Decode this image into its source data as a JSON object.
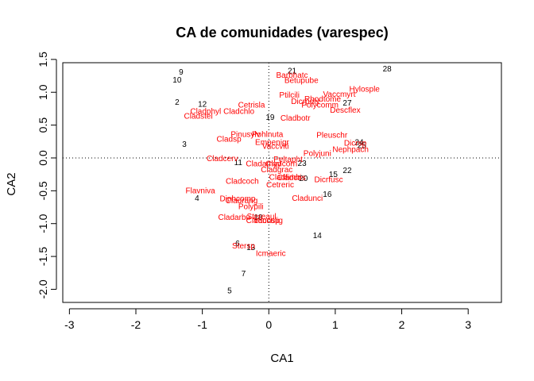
{
  "chart_data": {
    "type": "scatter",
    "title": "CA de comunidades (varespec)",
    "xlabel": "CA1",
    "ylabel": "CA2",
    "xlim": [
      -3.1,
      3.5
    ],
    "ylim": [
      -2.2,
      1.45
    ],
    "xticks": [
      -3,
      -2,
      -1,
      0,
      1,
      2,
      3
    ],
    "yticks": [
      -2.0,
      -1.5,
      -1.0,
      -0.5,
      0.0,
      0.5,
      1.0,
      1.5
    ],
    "ytick_labels": [
      "-2.0",
      "-1.5",
      "-1.0",
      "-0.5",
      "0.0",
      "0.5",
      "1.0",
      "1.5"
    ],
    "reference_lines": {
      "x": 0,
      "y": 0,
      "style": "dotted"
    },
    "colors": {
      "sites": "#000000",
      "species": "#ff0000"
    },
    "sites": [
      {
        "label": "9",
        "x": -1.32,
        "y": 1.3
      },
      {
        "label": "10",
        "x": -1.38,
        "y": 1.18
      },
      {
        "label": "21",
        "x": 0.35,
        "y": 1.32
      },
      {
        "label": "28",
        "x": 1.78,
        "y": 1.35
      },
      {
        "label": "2",
        "x": -1.38,
        "y": 0.84
      },
      {
        "label": "12",
        "x": -1.0,
        "y": 0.81
      },
      {
        "label": "27",
        "x": 1.18,
        "y": 0.83
      },
      {
        "label": "19",
        "x": 0.02,
        "y": 0.61
      },
      {
        "label": "3",
        "x": -1.27,
        "y": 0.2
      },
      {
        "label": "24",
        "x": 1.36,
        "y": 0.23
      },
      {
        "label": "25",
        "x": 1.4,
        "y": 0.18
      },
      {
        "label": "23",
        "x": 0.5,
        "y": -0.09
      },
      {
        "label": "11",
        "x": -0.46,
        "y": -0.08
      },
      {
        "label": "15",
        "x": 0.97,
        "y": -0.26
      },
      {
        "label": "22",
        "x": 1.18,
        "y": -0.2
      },
      {
        "label": "20",
        "x": 0.52,
        "y": -0.32
      },
      {
        "label": "4",
        "x": -1.08,
        "y": -0.62
      },
      {
        "label": "16",
        "x": 0.88,
        "y": -0.56
      },
      {
        "label": "18",
        "x": -0.16,
        "y": -0.91
      },
      {
        "label": "14",
        "x": 0.73,
        "y": -1.19
      },
      {
        "label": "6",
        "x": -0.47,
        "y": -1.31
      },
      {
        "label": "13",
        "x": -0.27,
        "y": -1.37
      },
      {
        "label": "7",
        "x": -0.38,
        "y": -1.77
      },
      {
        "label": "5",
        "x": -0.59,
        "y": -2.03
      }
    ],
    "species": [
      {
        "label": "Barbhatc",
        "x": 0.35,
        "y": 1.25
      },
      {
        "label": "Betupube",
        "x": 0.49,
        "y": 1.17
      },
      {
        "label": "Hylosple",
        "x": 1.44,
        "y": 1.04
      },
      {
        "label": "Vaccmyrt",
        "x": 1.06,
        "y": 0.96
      },
      {
        "label": "Ptilcili",
        "x": 0.31,
        "y": 0.95
      },
      {
        "label": "Dicrpoly",
        "x": 0.55,
        "y": 0.85
      },
      {
        "label": "Rhodtome",
        "x": 0.81,
        "y": 0.89
      },
      {
        "label": "Polycomm",
        "x": 0.77,
        "y": 0.8
      },
      {
        "label": "Descflex",
        "x": 1.15,
        "y": 0.72
      },
      {
        "label": "Cetrisla",
        "x": -0.26,
        "y": 0.8
      },
      {
        "label": "Cladphyl",
        "x": -0.95,
        "y": 0.7
      },
      {
        "label": "Cladchlo",
        "x": -0.45,
        "y": 0.7
      },
      {
        "label": "Cladstel",
        "x": -1.06,
        "y": 0.63
      },
      {
        "label": "Cladbotr",
        "x": 0.4,
        "y": 0.6
      },
      {
        "label": "Pinusylv",
        "x": -0.35,
        "y": 0.35
      },
      {
        "label": "Pohlnuta",
        "x": -0.02,
        "y": 0.35
      },
      {
        "label": "Cladsp",
        "x": -0.6,
        "y": 0.28
      },
      {
        "label": "Empenigr",
        "x": 0.05,
        "y": 0.23
      },
      {
        "label": "Vaccviti",
        "x": 0.1,
        "y": 0.17
      },
      {
        "label": "Pleuschr",
        "x": 0.95,
        "y": 0.34
      },
      {
        "label": "Dicrsp",
        "x": 1.3,
        "y": 0.22
      },
      {
        "label": "Nephpach",
        "x": 1.23,
        "y": 0.12
      },
      {
        "label": "Polyjuni",
        "x": 0.73,
        "y": 0.06
      },
      {
        "label": "Cladcerv",
        "x": -0.7,
        "y": -0.02
      },
      {
        "label": "Peltapht",
        "x": 0.29,
        "y": -0.03
      },
      {
        "label": "Cladamyy",
        "x": -0.08,
        "y": -0.1
      },
      {
        "label": "Cladcorn",
        "x": 0.19,
        "y": -0.1
      },
      {
        "label": "Cladgrac",
        "x": 0.12,
        "y": -0.19
      },
      {
        "label": "Cladfimb",
        "x": 0.24,
        "y": -0.3
      },
      {
        "label": "Cladcris",
        "x": 0.34,
        "y": -0.31
      },
      {
        "label": "Dicrfusc",
        "x": 0.9,
        "y": -0.34
      },
      {
        "label": "Cladcoch",
        "x": -0.4,
        "y": -0.36
      },
      {
        "label": "Cetreric",
        "x": 0.17,
        "y": -0.42
      },
      {
        "label": "Flavniva",
        "x": -1.03,
        "y": -0.51
      },
      {
        "label": "Cladunci",
        "x": 0.58,
        "y": -0.62
      },
      {
        "label": "Diphcomp",
        "x": -0.47,
        "y": -0.63
      },
      {
        "label": "Cladrang",
        "x": -0.41,
        "y": -0.66
      },
      {
        "label": "Polypili",
        "x": -0.27,
        "y": -0.75
      },
      {
        "label": "Cladarbu",
        "x": -0.52,
        "y": -0.91
      },
      {
        "label": "Stereaul",
        "x": -0.11,
        "y": -0.9
      },
      {
        "label": "Cladunsp",
        "x": -0.09,
        "y": -0.96
      },
      {
        "label": "Vacculig",
        "x": -0.01,
        "y": -0.96
      },
      {
        "label": "Stersp",
        "x": -0.38,
        "y": -1.35
      },
      {
        "label": "Icmaeric",
        "x": 0.03,
        "y": -1.46
      }
    ]
  }
}
